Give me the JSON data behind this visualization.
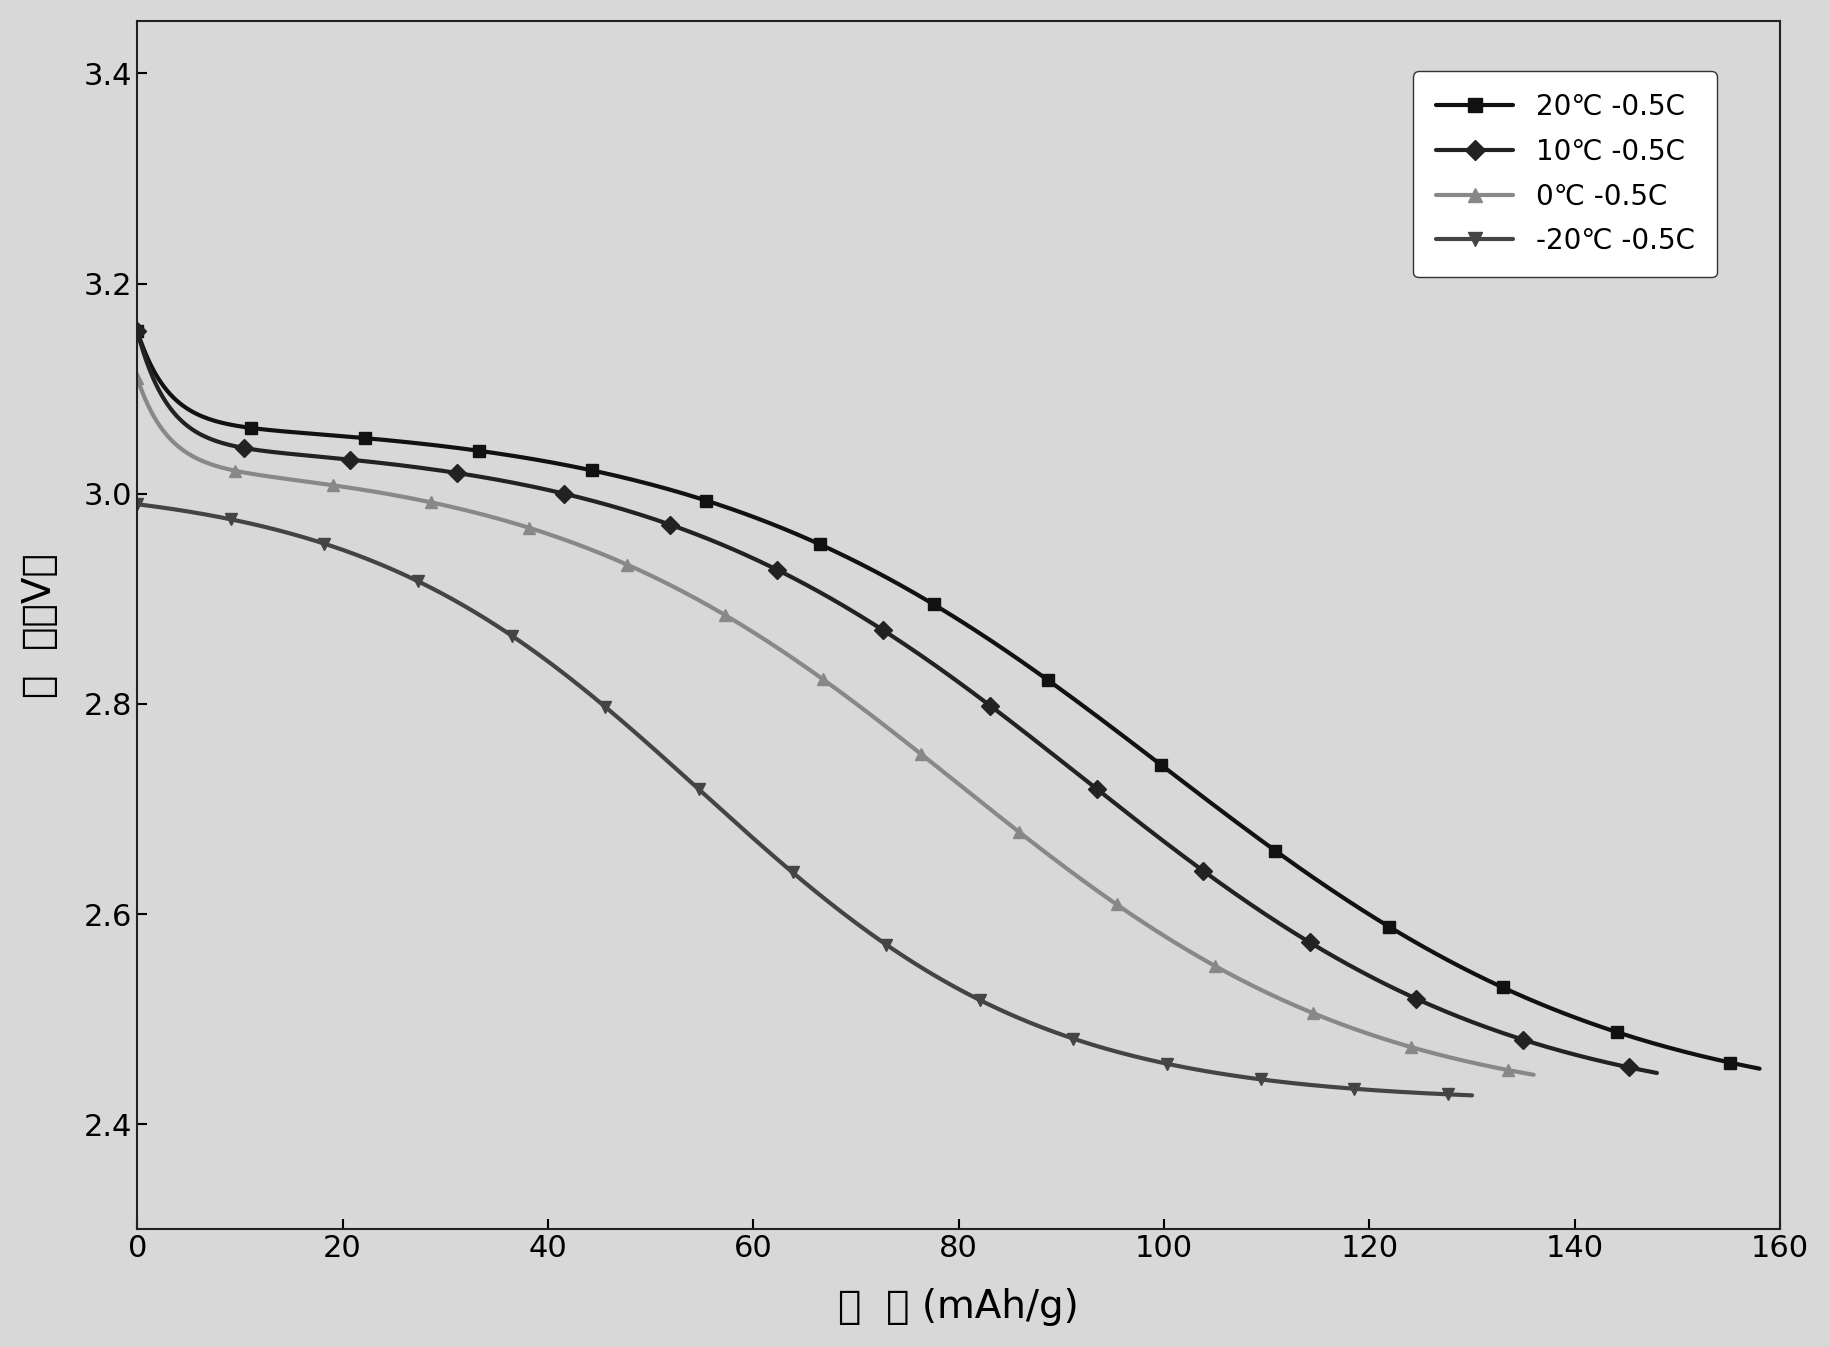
{
  "xlabel": "容  量 (mAh/g)",
  "ylabel": "电  压（V）",
  "xlim": [
    0,
    160
  ],
  "ylim": [
    2.3,
    3.45
  ],
  "xticks": [
    0,
    20,
    40,
    60,
    80,
    100,
    120,
    140,
    160
  ],
  "yticks": [
    2.4,
    2.6,
    2.8,
    3.0,
    3.2,
    3.4
  ],
  "background_color": "#e8e8e8",
  "series": [
    {
      "label": "20℃ -0.5C",
      "color": "#111111",
      "linewidth": 3.0,
      "marker": "s",
      "markersize": 9,
      "x_end": 158,
      "v_start": 3.155,
      "v_mid": 3.065,
      "knee": 100,
      "v_end": 2.4,
      "steepness": 0.045
    },
    {
      "label": "10℃ -0.5C",
      "color": "#222222",
      "linewidth": 3.0,
      "marker": "D",
      "markersize": 9,
      "x_end": 148,
      "v_start": 3.155,
      "v_mid": 3.045,
      "knee": 92,
      "v_end": 2.4,
      "steepness": 0.048
    },
    {
      "label": "0℃ -0.5C",
      "color": "#888888",
      "linewidth": 3.0,
      "marker": "^",
      "markersize": 9,
      "x_end": 136,
      "v_start": 3.11,
      "v_mid": 3.025,
      "knee": 80,
      "v_end": 2.4,
      "steepness": 0.05
    },
    {
      "label": "-20℃ -0.5C",
      "color": "#444444",
      "linewidth": 3.0,
      "marker": "v",
      "markersize": 9,
      "x_end": 130,
      "v_start": 2.99,
      "v_mid": 2.99,
      "knee": 55,
      "v_end": 2.4,
      "steepness": 0.06
    }
  ]
}
